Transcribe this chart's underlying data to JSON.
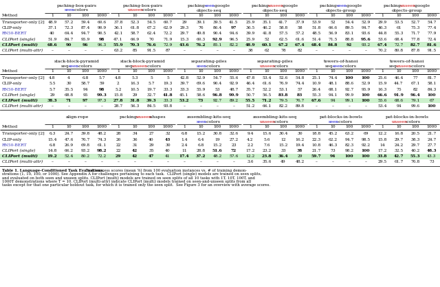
{
  "methods": [
    "Transporter-only [2]",
    "CLIP-only",
    "RN50-BERT",
    "CLIPort (single)",
    "CLIPort (multi)",
    "CLIPort (multi-attr)"
  ],
  "method_colors": [
    "black",
    "black",
    "#3333bb",
    "black",
    "black",
    "black"
  ],
  "method_italic": [
    false,
    false,
    false,
    true,
    true,
    true
  ],
  "method_bold": [
    false,
    false,
    false,
    false,
    true,
    false
  ],
  "highlight_row_color": "#ccf0cc",
  "sec1_h1": [
    [
      [
        "packing-box-pairs",
        "black"
      ]
    ],
    [
      [
        "packing-box-pairs",
        "black"
      ]
    ],
    [
      [
        "packing-",
        "black"
      ],
      [
        "seen",
        "#0000cc"
      ],
      [
        "-google",
        "black"
      ]
    ],
    [
      [
        "packing-",
        "black"
      ],
      [
        "unseen",
        "#cc0000"
      ],
      [
        "-google",
        "black"
      ]
    ],
    [
      [
        "packing-",
        "black"
      ],
      [
        "seen",
        "#0000cc"
      ],
      [
        "-google",
        "black"
      ]
    ],
    [
      [
        "packing-",
        "black"
      ],
      [
        "unseen",
        "#cc0000"
      ],
      [
        "-google",
        "black"
      ]
    ]
  ],
  "sec1_h2": [
    [
      [
        "seen",
        "#0000cc"
      ],
      [
        "-colors",
        "black"
      ]
    ],
    [
      [
        "unseen",
        "#cc0000"
      ],
      [
        "-colors",
        "black"
      ]
    ],
    [
      [
        "objects-seq",
        "black"
      ]
    ],
    [
      [
        "objects-seq",
        "black"
      ]
    ],
    [
      [
        "objects-group",
        "black"
      ]
    ],
    [
      [
        "objects-group",
        "black"
      ]
    ]
  ],
  "sec2_h1": [
    [
      [
        "stack-block-pyramid",
        "black"
      ]
    ],
    [
      [
        "stack-block-pyramid",
        "black"
      ]
    ],
    [
      [
        "separating-piles",
        "black"
      ]
    ],
    [
      [
        "separating-piles",
        "black"
      ]
    ],
    [
      [
        "towers-of-hanoi",
        "black"
      ]
    ],
    [
      [
        "towers-of-hanoi",
        "black"
      ]
    ]
  ],
  "sec2_h2": [
    [
      [
        "seq-",
        "black"
      ],
      [
        "seen",
        "#0000cc"
      ],
      [
        "-colors",
        "black"
      ]
    ],
    [
      [
        "seq-",
        "black"
      ],
      [
        "unseen",
        "#cc0000"
      ],
      [
        "-colors",
        "black"
      ]
    ],
    [
      [
        "seen",
        "#0000cc"
      ],
      [
        "-colors",
        "black"
      ]
    ],
    [
      [
        "unseen",
        "#cc0000"
      ],
      [
        "-colors",
        "black"
      ]
    ],
    [
      [
        "seq-",
        "black"
      ],
      [
        "seen",
        "#0000cc"
      ],
      [
        "-colors",
        "black"
      ]
    ],
    [
      [
        "seq-",
        "black"
      ],
      [
        "unseen",
        "#cc0000"
      ],
      [
        "-colors",
        "black"
      ]
    ]
  ],
  "sec3_h1": [
    [
      [
        "align-rope",
        "black"
      ]
    ],
    [
      [
        "packing-",
        "black"
      ],
      [
        "unseen",
        "#cc0000"
      ],
      [
        "-shapes",
        "black"
      ]
    ],
    [
      [
        "assembling-kits-seq",
        "black"
      ]
    ],
    [
      [
        "assembling-kits-seq",
        "black"
      ]
    ],
    [
      [
        "put-blocks-in-bowls",
        "black"
      ]
    ],
    [
      [
        "put-blocks-in-bowls",
        "black"
      ]
    ]
  ],
  "sec3_h2": [
    [
      [
        "",
        "black"
      ]
    ],
    [
      [
        "",
        "black"
      ]
    ],
    [
      [
        "seen",
        "#0000cc"
      ],
      [
        "-colors",
        "black"
      ]
    ],
    [
      [
        "unseen",
        "#cc0000"
      ],
      [
        "-colors",
        "black"
      ]
    ],
    [
      [
        "seen",
        "#0000cc"
      ],
      [
        "-colors",
        "black"
      ]
    ],
    [
      [
        "unseen",
        "#cc0000"
      ],
      [
        "-colors",
        "black"
      ]
    ]
  ],
  "data_row1": [
    [
      48.9,
      57.2,
      59.4,
      60.6,
      37.8,
      52.3,
      54.5,
      60.7,
      29.0,
      39.1,
      39.5,
      41.5,
      25.9,
      35.1,
      41.7,
      37.9,
      53.9,
      52.0,
      54.4,
      52.9,
      29.9,
      53.5,
      52.7,
      54.7
    ],
    [
      37.1,
      72.3,
      87.4,
      90.9,
      36.1,
      61.8,
      67.2,
      62.9,
      29.3,
      76.0,
      86.4,
      97.0,
      36.5,
      46.2,
      58.8,
      58.0,
      51.8,
      66.6,
      89.5,
      94.7,
      46.3,
      61.0,
      75.3,
      77.4
    ],
    [
      40.0,
      64.4,
      94.7,
      90.5,
      42.1,
      58.7,
      62.4,
      72.2,
      29.7,
      49.8,
      90.4,
      94.6,
      39.9,
      41.8,
      57.5,
      57.2,
      48.5,
      56.9,
      83.1,
      93.6,
      44.8,
      55.3,
      71.7,
      77.9
    ],
    [
      51.9,
      84.7,
      95.9,
      98.0,
      47.1,
      66.9,
      70.0,
      71.9,
      15.3,
      60.3,
      92.9,
      96.5,
      25.9,
      52.0,
      62.5,
      61.6,
      51.4,
      71.5,
      88.8,
      95.6,
      53.6,
      68.4,
      77.8,
      72.4
    ],
    [
      68.6,
      90.0,
      96.0,
      96.3,
      55.9,
      70.3,
      76.6,
      72.9,
      43.6,
      76.2,
      85.1,
      82.2,
      48.9,
      60.1,
      67.2,
      67.4,
      68.4,
      84.8,
      92.0,
      93.2,
      67.4,
      72.7,
      82.7,
      81.6
    ],
    [
      null,
      null,
      null,
      null,
      63.2,
      85.0,
      91.5,
      87.0,
      null,
      null,
      null,
      null,
      38.0,
      62.0,
      78.0,
      82.0,
      null,
      null,
      null,
      null,
      70.2,
      80.8,
      87.8,
      91.5
    ]
  ],
  "bold_row1": [
    [
      false,
      false,
      false,
      false,
      false,
      false,
      false,
      false,
      false,
      false,
      false,
      false,
      false,
      false,
      false,
      false,
      false,
      false,
      false,
      false,
      false,
      false,
      false,
      false
    ],
    [
      false,
      false,
      false,
      false,
      false,
      false,
      false,
      false,
      false,
      false,
      false,
      true,
      false,
      false,
      false,
      false,
      false,
      false,
      false,
      false,
      false,
      false,
      false,
      false
    ],
    [
      false,
      false,
      false,
      false,
      false,
      false,
      false,
      false,
      false,
      false,
      false,
      false,
      false,
      false,
      false,
      false,
      false,
      false,
      false,
      false,
      false,
      false,
      false,
      false
    ],
    [
      false,
      false,
      false,
      true,
      false,
      false,
      false,
      false,
      false,
      false,
      true,
      false,
      false,
      false,
      false,
      false,
      false,
      false,
      false,
      true,
      false,
      false,
      false,
      false
    ],
    [
      true,
      true,
      true,
      false,
      true,
      true,
      true,
      false,
      true,
      true,
      false,
      false,
      true,
      true,
      true,
      true,
      true,
      true,
      true,
      false,
      true,
      false,
      true,
      true
    ],
    [
      false,
      false,
      false,
      false,
      false,
      false,
      false,
      false,
      false,
      false,
      false,
      false,
      false,
      false,
      false,
      false,
      false,
      false,
      false,
      false,
      false,
      false,
      false,
      false
    ]
  ],
  "data_row2": [
    [
      4.8,
      4.0,
      6.8,
      5.7,
      4.8,
      5.3,
      5.0,
      5.0,
      42.8,
      52.9,
      54.7,
      55.6,
      47.8,
      53.4,
      52.6,
      54.8,
      25.1,
      74.4,
      100.0,
      100.0,
      25.6,
      46.4,
      77.0,
      81.7
    ],
    [
      5.5,
      30.0,
      58.7,
      59.0,
      2.0,
      16.3,
      5.7,
      19.3,
      39.7,
      69.6,
      90.4,
      92.9,
      46.4,
      61.6,
      76.9,
      74.4,
      10.9,
      48.1,
      88.6,
      52.9,
      15.9,
      44.7,
      67.1,
      58.1
    ],
    [
      5.7,
      35.5,
      94.0,
      98.0,
      5.2,
      10.5,
      19.7,
      33.3,
      33.3,
      55.9,
      53.0,
      48.7,
      35.7,
      52.2,
      53.1,
      57.0,
      26.4,
      68.1,
      92.7,
      95.9,
      16.3,
      75.0,
      82.0,
      84.3
    ],
    [
      29.0,
      68.8,
      95.0,
      99.3,
      15.8,
      29.0,
      32.7,
      41.8,
      45.1,
      58.6,
      96.8,
      99.9,
      50.7,
      56.5,
      83.8,
      83.0,
      55.3,
      94.1,
      99.9,
      100.0,
      66.6,
      91.9,
      96.4,
      100.0
    ],
    [
      38.3,
      71.0,
      97.0,
      97.3,
      27.8,
      31.8,
      39.3,
      33.3,
      53.2,
      73.0,
      92.7,
      89.2,
      55.5,
      71.2,
      79.5,
      76.7,
      67.6,
      94.0,
      99.1,
      100.0,
      55.6,
      68.6,
      79.1,
      67.0
    ],
    [
      null,
      null,
      null,
      null,
      28.7,
      56.3,
      84.5,
      93.8,
      null,
      null,
      null,
      null,
      51.2,
      66.1,
      82.2,
      89.8,
      null,
      null,
      null,
      null,
      53.4,
      94.0,
      99.6,
      100.0
    ]
  ],
  "bold_row2": [
    [
      false,
      false,
      false,
      false,
      false,
      false,
      false,
      false,
      false,
      false,
      false,
      false,
      false,
      false,
      false,
      false,
      false,
      false,
      true,
      true,
      false,
      false,
      false,
      false
    ],
    [
      false,
      false,
      false,
      false,
      false,
      false,
      false,
      false,
      false,
      false,
      false,
      false,
      false,
      false,
      false,
      false,
      false,
      false,
      false,
      false,
      false,
      false,
      false,
      false
    ],
    [
      false,
      false,
      false,
      true,
      false,
      false,
      false,
      false,
      false,
      false,
      false,
      false,
      false,
      false,
      false,
      false,
      false,
      false,
      false,
      false,
      false,
      false,
      false,
      false
    ],
    [
      false,
      false,
      false,
      true,
      false,
      false,
      false,
      true,
      false,
      false,
      true,
      true,
      false,
      false,
      true,
      true,
      false,
      false,
      false,
      true,
      true,
      true,
      true,
      true
    ],
    [
      true,
      true,
      true,
      false,
      true,
      true,
      true,
      false,
      true,
      true,
      false,
      false,
      true,
      true,
      false,
      false,
      true,
      false,
      false,
      true,
      false,
      false,
      false,
      false
    ],
    [
      false,
      false,
      false,
      false,
      false,
      false,
      false,
      false,
      false,
      false,
      false,
      false,
      false,
      false,
      false,
      false,
      false,
      false,
      false,
      false,
      false,
      false,
      false,
      true
    ]
  ],
  "data_row3": [
    [
      6.3,
      24.7,
      39.8,
      48.2,
      28.0,
      34.0,
      27.0,
      32.0,
      6.8,
      15.2,
      30.8,
      32.6,
      9.4,
      15.6,
      30.4,
      30.0,
      18.8,
      45.2,
      63.2,
      69.0,
      12.2,
      16.8,
      20.5,
      21.7
    ],
    [
      15.4,
      47.6,
      76.7,
      74.3,
      26.0,
      36.0,
      40.0,
      43.0,
      1.4,
      6.4,
      19.0,
      27.2,
      4.2,
      5.6,
      12.0,
      16.2,
      22.3,
      62.2,
      94.7,
      98.5,
      15.8,
      29.7,
      38.3,
      24.7
    ],
    [
      6.8,
      26.9,
      69.8,
      61.1,
      22.0,
      31.0,
      29.0,
      30.0,
      2.4,
      6.8,
      15.2,
      23.0,
      2.2,
      7.6,
      15.2,
      19.4,
      10.8,
      46.3,
      82.3,
      92.2,
      14.0,
      24.2,
      29.7,
      27.7
    ],
    [
      14.8,
      66.2,
      93.2,
      98.2,
      22.0,
      42.0,
      35.0,
      40.0,
      11.0,
      28.8,
      51.6,
      72.0,
      17.2,
      23.2,
      33.0,
      38.0,
      21.7,
      73.0,
      98.2,
      100.0,
      17.2,
      32.5,
      40.2,
      48.3
    ],
    [
      19.2,
      52.4,
      80.2,
      72.2,
      29.0,
      42.0,
      47.0,
      41.0,
      17.4,
      37.2,
      48.2,
      57.6,
      12.2,
      23.8,
      36.4,
      29.0,
      59.7,
      94.0,
      100.0,
      100.0,
      33.8,
      42.7,
      55.3,
      43.3
    ],
    [
      null,
      null,
      null,
      null,
      null,
      null,
      null,
      null,
      null,
      null,
      null,
      null,
      3.6,
      35.6,
      49.0,
      48.2,
      null,
      null,
      null,
      null,
      29.5,
      61.7,
      76.8,
      73.0
    ]
  ],
  "bold_row3": [
    [
      false,
      false,
      false,
      false,
      false,
      false,
      false,
      false,
      false,
      false,
      false,
      false,
      false,
      false,
      false,
      false,
      false,
      false,
      false,
      false,
      false,
      false,
      false,
      false
    ],
    [
      false,
      false,
      false,
      false,
      false,
      false,
      false,
      true,
      false,
      false,
      false,
      false,
      false,
      false,
      false,
      false,
      false,
      false,
      false,
      false,
      false,
      false,
      false,
      false
    ],
    [
      false,
      false,
      false,
      false,
      false,
      false,
      false,
      false,
      false,
      false,
      false,
      false,
      false,
      false,
      false,
      false,
      false,
      false,
      false,
      false,
      false,
      false,
      false,
      false
    ],
    [
      false,
      false,
      false,
      true,
      false,
      true,
      false,
      false,
      false,
      false,
      true,
      true,
      false,
      false,
      false,
      true,
      false,
      false,
      false,
      true,
      false,
      false,
      false,
      true
    ],
    [
      true,
      false,
      false,
      false,
      true,
      true,
      true,
      false,
      true,
      true,
      false,
      false,
      false,
      true,
      true,
      false,
      true,
      true,
      true,
      true,
      true,
      true,
      true,
      false
    ],
    [
      false,
      false,
      false,
      false,
      false,
      false,
      false,
      false,
      false,
      false,
      false,
      false,
      false,
      false,
      false,
      false,
      false,
      false,
      false,
      false,
      false,
      false,
      false,
      false
    ]
  ]
}
